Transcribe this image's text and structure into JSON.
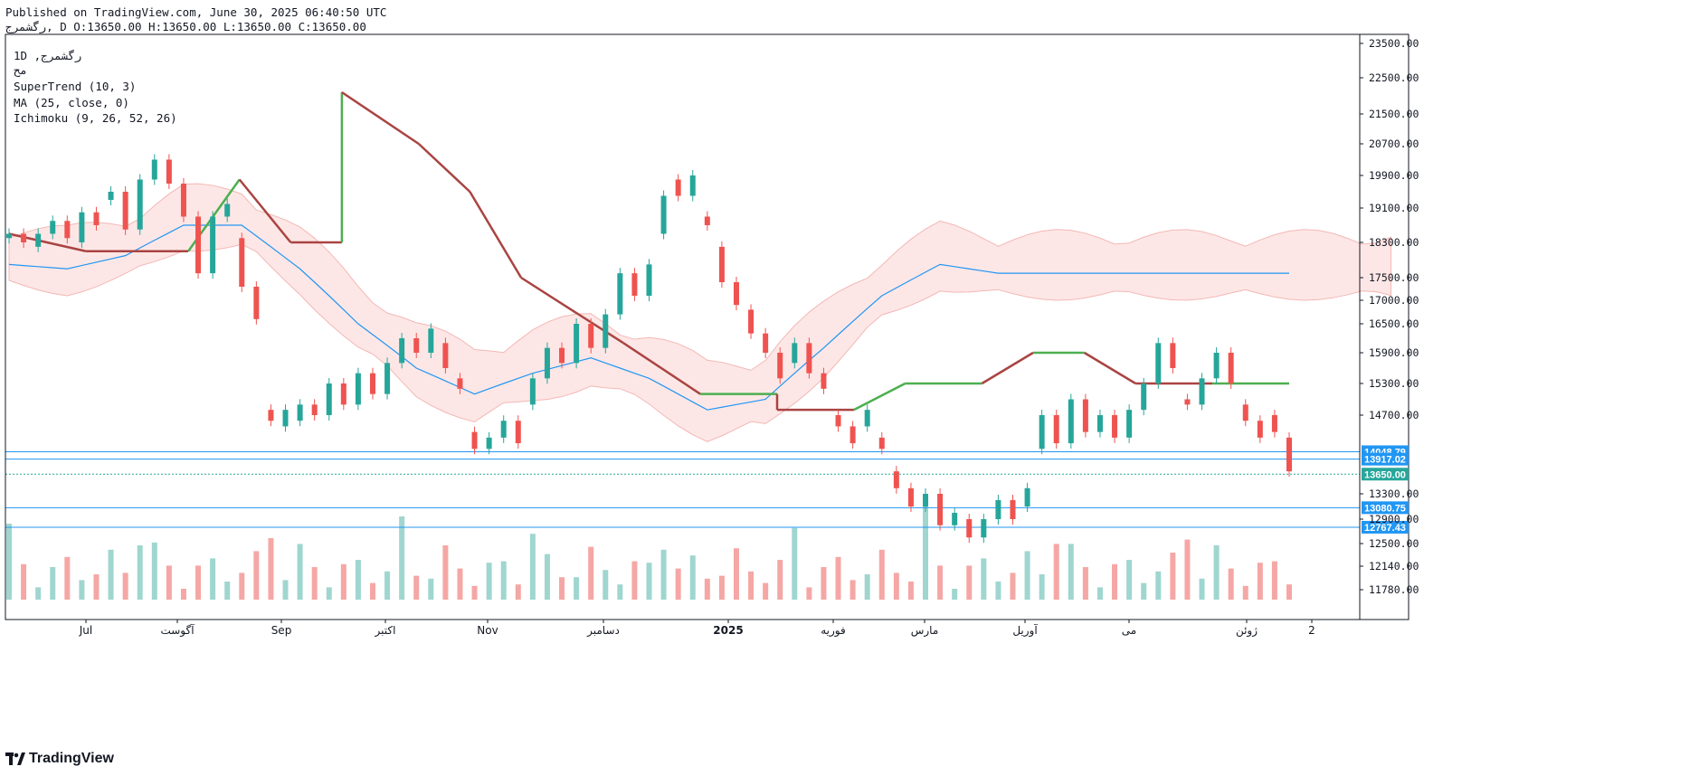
{
  "header": {
    "published": "Published on TradingView.com, June 30, 2025 06:40:50 UTC",
    "ohlc": "رگشمرج, D O:13650.00 H:13650.00 L:13650.00 C:13650.00"
  },
  "legend": {
    "line1": "1D ,رگشمرج",
    "line2": "مح",
    "line3": "SuperTrend (10, 3)",
    "line4": "MA (25, close, 0)",
    "line5": "Ichimoku (9, 26, 52, 26)"
  },
  "brand": {
    "name": "TradingView"
  },
  "colors": {
    "up": "#26a69a",
    "down": "#ef5350",
    "up_volume": "#9fd6cf",
    "down_volume": "#f5a7a5",
    "supertrend_up": "#4caf50",
    "supertrend_down": "#a94442",
    "ma": "#2196f3",
    "cloud_up": "#e3f2e4",
    "cloud_down": "#fde4e3",
    "level_line": "#2196f3"
  },
  "chart_data": {
    "type": "candlestick",
    "title": "",
    "symbol": "رگشمرج",
    "interval": "1D",
    "last_price": 13650.0,
    "y_ticks": [
      23500.0,
      22500.0,
      21500.0,
      20700.0,
      19900.0,
      19100.0,
      18300.0,
      17500.0,
      17000.0,
      16500.0,
      15900.0,
      15300.0,
      14700.0,
      13300.0,
      12900.0,
      12500.0,
      12140.0,
      11780.0
    ],
    "y_tick_labels": [
      "23500.00",
      "22500.00",
      "21500.00",
      "20700.00",
      "19900.00",
      "19100.00",
      "18300.00",
      "17500.00",
      "17000.00",
      "16500.00",
      "15900.00",
      "15300.00",
      "14700.00",
      "13300.00",
      "12900.00",
      "12500.00",
      "12140.00",
      "11780.00"
    ],
    "x_labels": [
      "Jul",
      "آگوست",
      "Sep",
      "اکتبر",
      "Nov",
      "دسامبر",
      "2025",
      "فوریه",
      "مارس",
      "آوریل",
      "می",
      "ژوئن",
      "2"
    ],
    "horizontal_levels": [
      {
        "value": 14048.79,
        "label": "14048.79",
        "style": "solid"
      },
      {
        "value": 13917.02,
        "label": "13917.02",
        "style": "solid"
      },
      {
        "value": 13080.75,
        "label": "13080.75",
        "style": "solid"
      },
      {
        "value": 12767.43,
        "label": "12767.43",
        "style": "solid"
      }
    ],
    "last_price_label": "13650.00",
    "series": {
      "price": [
        {
          "o": 18400,
          "c": 18500,
          "dir": "up"
        },
        {
          "o": 18500,
          "c": 18300,
          "dir": "down"
        },
        {
          "o": 18200,
          "c": 18500,
          "dir": "up"
        },
        {
          "o": 18500,
          "c": 18800,
          "dir": "up"
        },
        {
          "o": 18800,
          "c": 18400,
          "dir": "down"
        },
        {
          "o": 18300,
          "c": 19000,
          "dir": "up"
        },
        {
          "o": 19000,
          "c": 18700,
          "dir": "down"
        },
        {
          "o": 19300,
          "c": 19500,
          "dir": "up"
        },
        {
          "o": 19500,
          "c": 18600,
          "dir": "down"
        },
        {
          "o": 18600,
          "c": 19800,
          "dir": "up"
        },
        {
          "o": 19800,
          "c": 20300,
          "dir": "up"
        },
        {
          "o": 20300,
          "c": 19700,
          "dir": "down"
        },
        {
          "o": 19700,
          "c": 18900,
          "dir": "down"
        },
        {
          "o": 18900,
          "c": 17600,
          "dir": "down"
        },
        {
          "o": 17600,
          "c": 18900,
          "dir": "up"
        },
        {
          "o": 18900,
          "c": 19200,
          "dir": "up"
        },
        {
          "o": 18400,
          "c": 17300,
          "dir": "down"
        },
        {
          "o": 17300,
          "c": 16600,
          "dir": "down"
        },
        {
          "o": 14800,
          "c": 14600,
          "dir": "down"
        },
        {
          "o": 14500,
          "c": 14800,
          "dir": "up"
        },
        {
          "o": 14600,
          "c": 14900,
          "dir": "up"
        },
        {
          "o": 14900,
          "c": 14700,
          "dir": "down"
        },
        {
          "o": 14700,
          "c": 15300,
          "dir": "up"
        },
        {
          "o": 15300,
          "c": 14900,
          "dir": "down"
        },
        {
          "o": 14900,
          "c": 15500,
          "dir": "up"
        },
        {
          "o": 15500,
          "c": 15100,
          "dir": "down"
        },
        {
          "o": 15100,
          "c": 15700,
          "dir": "up"
        },
        {
          "o": 15700,
          "c": 16200,
          "dir": "up"
        },
        {
          "o": 16200,
          "c": 15900,
          "dir": "down"
        },
        {
          "o": 15900,
          "c": 16400,
          "dir": "up"
        },
        {
          "o": 16100,
          "c": 15600,
          "dir": "down"
        },
        {
          "o": 15400,
          "c": 15200,
          "dir": "down"
        },
        {
          "o": 14400,
          "c": 14100,
          "dir": "down"
        },
        {
          "o": 14100,
          "c": 14300,
          "dir": "up"
        },
        {
          "o": 14300,
          "c": 14600,
          "dir": "up"
        },
        {
          "o": 14600,
          "c": 14200,
          "dir": "down"
        },
        {
          "o": 14900,
          "c": 15400,
          "dir": "up"
        },
        {
          "o": 15400,
          "c": 16000,
          "dir": "up"
        },
        {
          "o": 16000,
          "c": 15700,
          "dir": "down"
        },
        {
          "o": 15700,
          "c": 16500,
          "dir": "up"
        },
        {
          "o": 16500,
          "c": 16000,
          "dir": "down"
        },
        {
          "o": 16000,
          "c": 16700,
          "dir": "up"
        },
        {
          "o": 16700,
          "c": 17600,
          "dir": "up"
        },
        {
          "o": 17600,
          "c": 17100,
          "dir": "down"
        },
        {
          "o": 17100,
          "c": 17800,
          "dir": "up"
        },
        {
          "o": 18500,
          "c": 19400,
          "dir": "up"
        },
        {
          "o": 19800,
          "c": 19400,
          "dir": "down"
        },
        {
          "o": 19400,
          "c": 19900,
          "dir": "up"
        },
        {
          "o": 18900,
          "c": 18700,
          "dir": "down"
        },
        {
          "o": 18200,
          "c": 17400,
          "dir": "down"
        },
        {
          "o": 17400,
          "c": 16900,
          "dir": "down"
        },
        {
          "o": 16800,
          "c": 16300,
          "dir": "down"
        },
        {
          "o": 16300,
          "c": 15900,
          "dir": "down"
        },
        {
          "o": 15900,
          "c": 15400,
          "dir": "down"
        },
        {
          "o": 15700,
          "c": 16100,
          "dir": "up"
        },
        {
          "o": 16100,
          "c": 15500,
          "dir": "down"
        },
        {
          "o": 15500,
          "c": 15200,
          "dir": "down"
        },
        {
          "o": 14700,
          "c": 14500,
          "dir": "down"
        },
        {
          "o": 14500,
          "c": 14200,
          "dir": "down"
        },
        {
          "o": 14500,
          "c": 14800,
          "dir": "up"
        },
        {
          "o": 14300,
          "c": 14100,
          "dir": "down"
        },
        {
          "o": 13700,
          "c": 13400,
          "dir": "down"
        },
        {
          "o": 13400,
          "c": 13100,
          "dir": "down"
        },
        {
          "o": 13100,
          "c": 13300,
          "dir": "up"
        },
        {
          "o": 13300,
          "c": 12800,
          "dir": "down"
        },
        {
          "o": 12800,
          "c": 13000,
          "dir": "up"
        },
        {
          "o": 12900,
          "c": 12600,
          "dir": "down"
        },
        {
          "o": 12600,
          "c": 12900,
          "dir": "up"
        },
        {
          "o": 12900,
          "c": 13200,
          "dir": "up"
        },
        {
          "o": 13200,
          "c": 12900,
          "dir": "down"
        },
        {
          "o": 13100,
          "c": 13400,
          "dir": "up"
        },
        {
          "o": 14100,
          "c": 14700,
          "dir": "up"
        },
        {
          "o": 14700,
          "c": 14200,
          "dir": "down"
        },
        {
          "o": 14200,
          "c": 15000,
          "dir": "up"
        },
        {
          "o": 15000,
          "c": 14400,
          "dir": "down"
        },
        {
          "o": 14400,
          "c": 14700,
          "dir": "up"
        },
        {
          "o": 14700,
          "c": 14300,
          "dir": "down"
        },
        {
          "o": 14300,
          "c": 14800,
          "dir": "up"
        },
        {
          "o": 14800,
          "c": 15300,
          "dir": "up"
        },
        {
          "o": 15300,
          "c": 16100,
          "dir": "up"
        },
        {
          "o": 16100,
          "c": 15600,
          "dir": "down"
        },
        {
          "o": 15000,
          "c": 14900,
          "dir": "down"
        },
        {
          "o": 14900,
          "c": 15400,
          "dir": "up"
        },
        {
          "o": 15400,
          "c": 15900,
          "dir": "up"
        },
        {
          "o": 15900,
          "c": 15300,
          "dir": "down"
        },
        {
          "o": 14900,
          "c": 14600,
          "dir": "down"
        },
        {
          "o": 14600,
          "c": 14300,
          "dir": "down"
        },
        {
          "o": 14700,
          "c": 14400,
          "dir": "down"
        },
        {
          "o": 14300,
          "c": 13700,
          "dir": "down"
        }
      ],
      "supertrend": [
        {
          "i": 0,
          "v": 18500
        },
        {
          "i": 3,
          "v": 18100
        },
        {
          "i": 7,
          "v": 18100
        },
        {
          "i": 9,
          "v": 19800
        },
        {
          "i": 11,
          "v": 18300
        },
        {
          "i": 13,
          "v": 18300
        },
        {
          "i": 13,
          "v": 22100
        },
        {
          "i": 16,
          "v": 20700
        },
        {
          "i": 18,
          "v": 19500
        },
        {
          "i": 20,
          "v": 17500
        },
        {
          "i": 24,
          "v": 16100
        },
        {
          "i": 27,
          "v": 15100
        },
        {
          "i": 30,
          "v": 15100
        },
        {
          "i": 30,
          "v": 14800
        },
        {
          "i": 33,
          "v": 14800
        },
        {
          "i": 35,
          "v": 15300
        },
        {
          "i": 38,
          "v": 15300
        },
        {
          "i": 40,
          "v": 15900
        },
        {
          "i": 42,
          "v": 15900
        },
        {
          "i": 44,
          "v": 15300
        },
        {
          "i": 47,
          "v": 15300
        },
        {
          "i": 50,
          "v": 15300
        }
      ],
      "moving_average": [
        {
          "i": 0,
          "v": 17800
        },
        {
          "i": 4,
          "v": 17700
        },
        {
          "i": 8,
          "v": 18000
        },
        {
          "i": 12,
          "v": 18700
        },
        {
          "i": 16,
          "v": 18700
        },
        {
          "i": 20,
          "v": 17700
        },
        {
          "i": 24,
          "v": 16500
        },
        {
          "i": 28,
          "v": 15600
        },
        {
          "i": 32,
          "v": 15100
        },
        {
          "i": 36,
          "v": 15500
        },
        {
          "i": 40,
          "v": 15800
        },
        {
          "i": 44,
          "v": 15400
        },
        {
          "i": 48,
          "v": 14800
        },
        {
          "i": 52,
          "v": 15000
        },
        {
          "i": 56,
          "v": 16000
        },
        {
          "i": 60,
          "v": 17100
        },
        {
          "i": 64,
          "v": 17800
        },
        {
          "i": 68,
          "v": 17600
        }
      ]
    },
    "volume": true,
    "grid": false,
    "legend_position": "top-left"
  }
}
